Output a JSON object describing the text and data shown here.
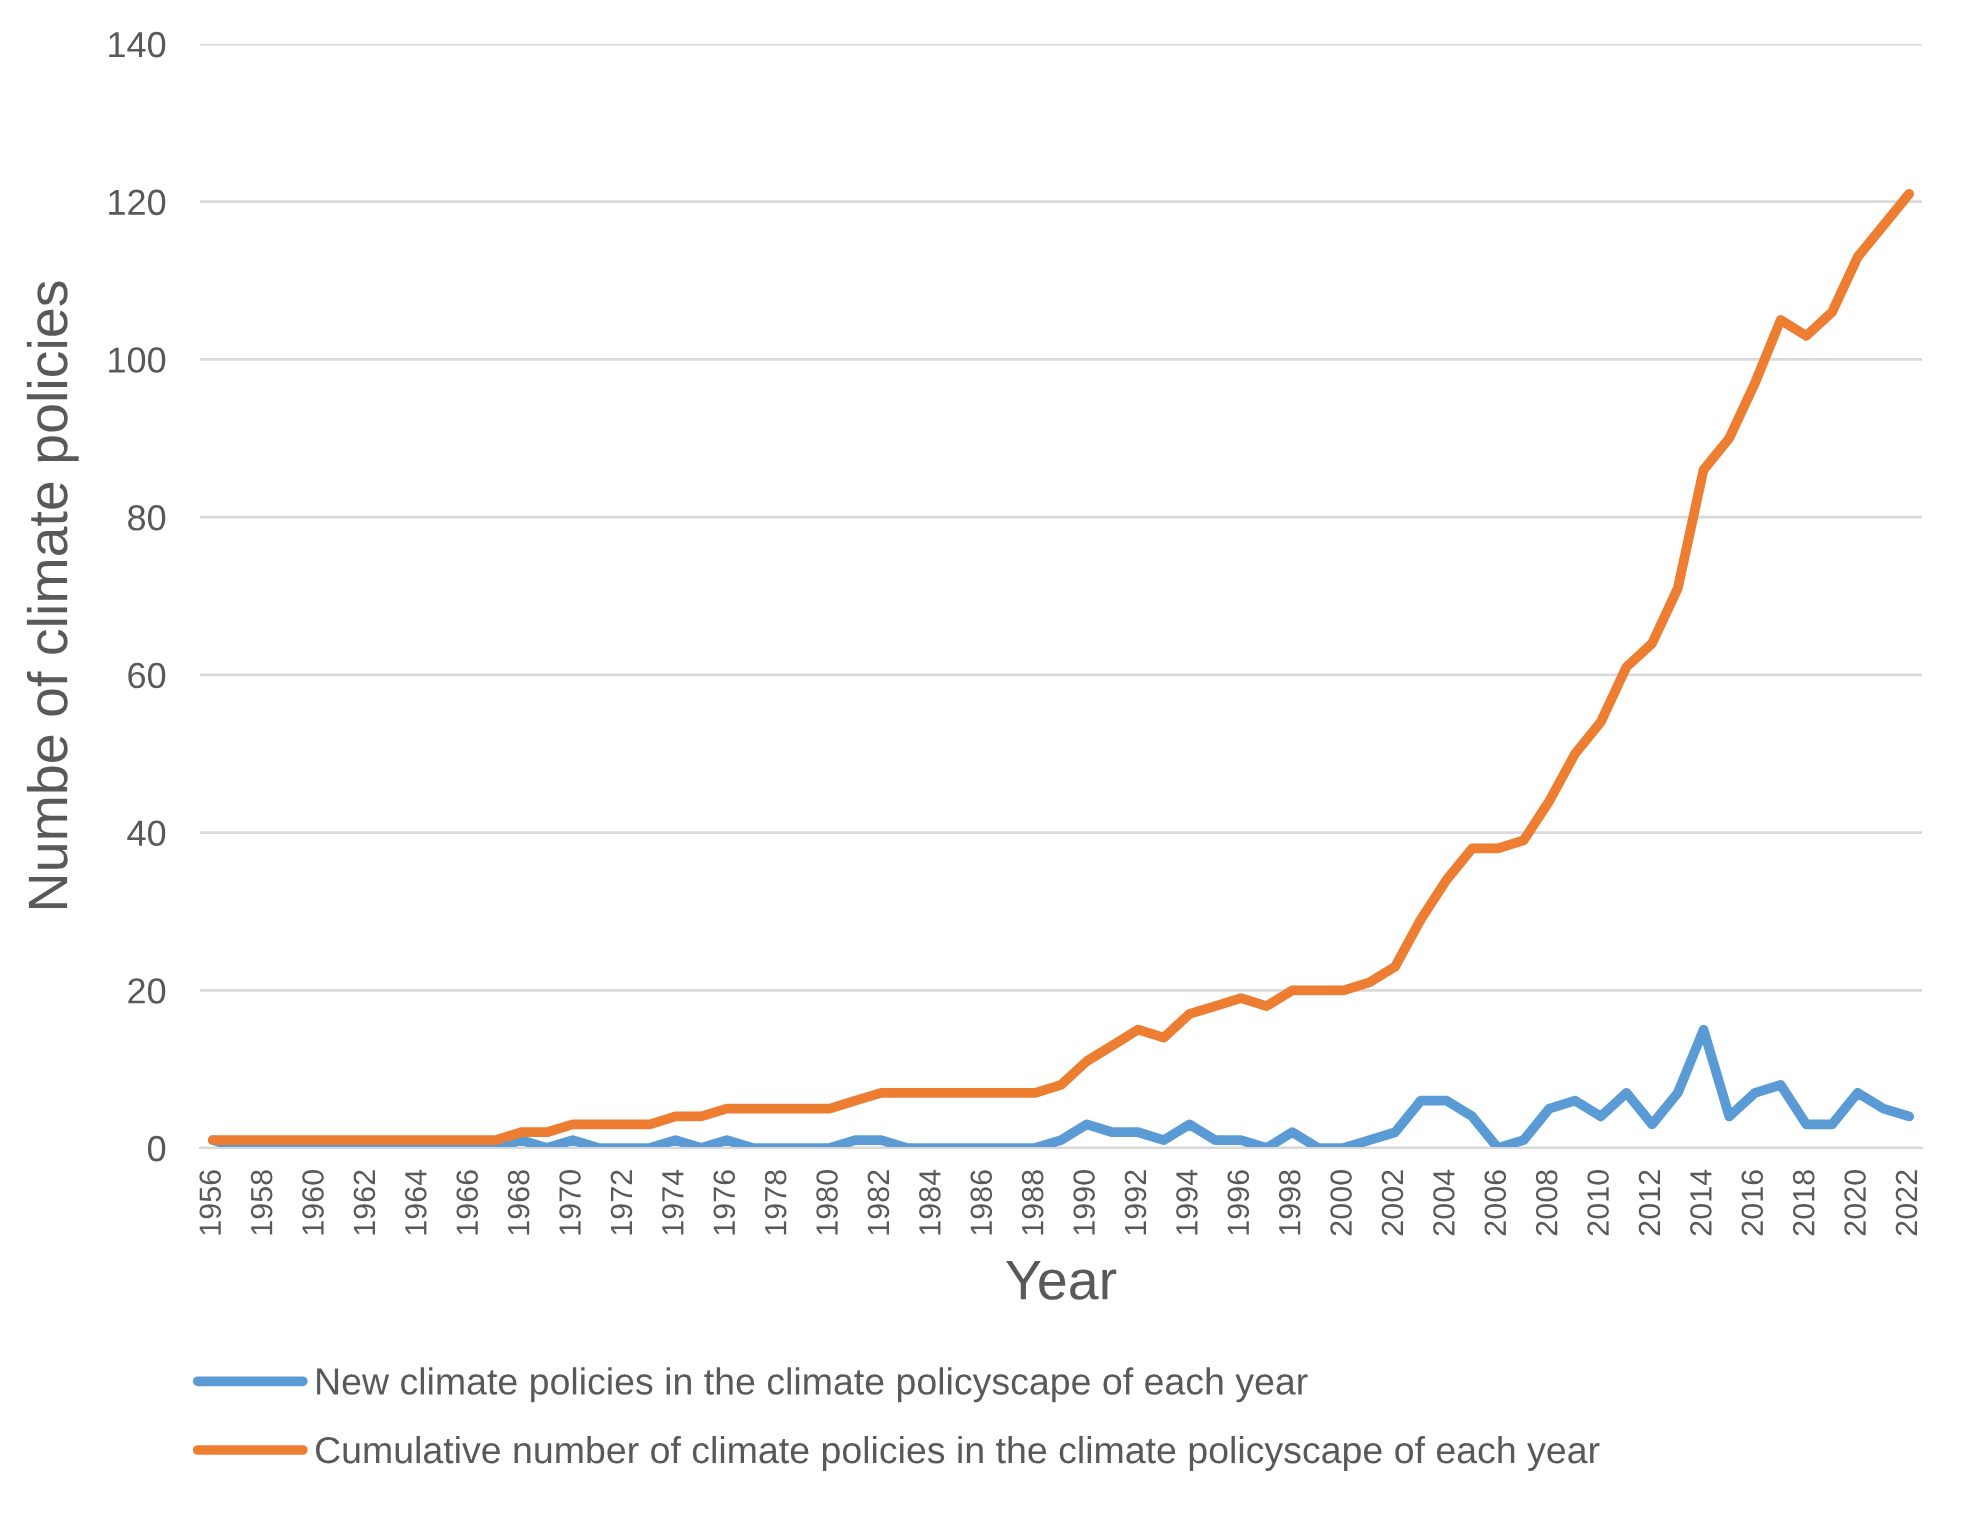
{
  "chart_data": {
    "type": "line",
    "xlabel": "Year",
    "ylabel": "Numbe of climate policies",
    "categories": [
      "1956",
      null,
      "1958",
      null,
      "1960",
      null,
      "1962",
      null,
      "1964",
      null,
      "1966",
      null,
      "1968",
      null,
      "1970",
      null,
      "1972",
      null,
      "1974",
      null,
      "1976",
      null,
      "1978",
      null,
      "1980",
      null,
      "1982",
      null,
      "1984",
      null,
      "1986",
      null,
      "1988",
      null,
      "1990",
      null,
      "1992",
      null,
      "1994",
      null,
      "1996",
      null,
      "1998",
      null,
      "2000",
      null,
      "2002",
      null,
      "2004",
      null,
      "2006",
      null,
      "2008",
      null,
      "2010",
      null,
      "2012",
      null,
      "2014",
      null,
      "2016",
      null,
      "2018",
      null,
      "2020",
      null,
      "2022"
    ],
    "series": [
      {
        "name": "New climate policies in the climate policyscape of each year",
        "color": "#5b9bd5",
        "values": [
          1,
          0,
          0,
          0,
          0,
          0,
          0,
          0,
          0,
          0,
          0,
          0,
          1,
          0,
          1,
          0,
          0,
          0,
          1,
          0,
          1,
          0,
          0,
          0,
          0,
          1,
          1,
          0,
          0,
          0,
          0,
          0,
          0,
          1,
          3,
          2,
          2,
          1,
          3,
          1,
          1,
          0,
          2,
          0,
          0,
          1,
          2,
          6,
          6,
          4,
          0,
          1,
          5,
          6,
          4,
          7,
          3,
          7,
          15,
          4,
          7,
          8,
          3,
          3,
          7,
          5,
          4
        ]
      },
      {
        "name": "Cumulative number of climate policies in the climate policyscape of each year",
        "color": "#ed7d31",
        "values": [
          1,
          1,
          1,
          1,
          1,
          1,
          1,
          1,
          1,
          1,
          1,
          1,
          2,
          2,
          3,
          3,
          3,
          3,
          4,
          4,
          5,
          5,
          5,
          5,
          5,
          6,
          7,
          7,
          7,
          7,
          7,
          7,
          7,
          8,
          11,
          13,
          15,
          14,
          17,
          18,
          19,
          18,
          20,
          20,
          20,
          21,
          23,
          29,
          34,
          38,
          38,
          39,
          44,
          50,
          54,
          61,
          64,
          71,
          86,
          90,
          97,
          105,
          103,
          106,
          113,
          117,
          121
        ]
      }
    ],
    "ylim": [
      0,
      140
    ],
    "yticks": [
      0,
      20,
      40,
      60,
      80,
      100,
      120,
      140
    ],
    "grid": "y",
    "legend": "bottom",
    "line_style": "solid",
    "marker": "none"
  }
}
